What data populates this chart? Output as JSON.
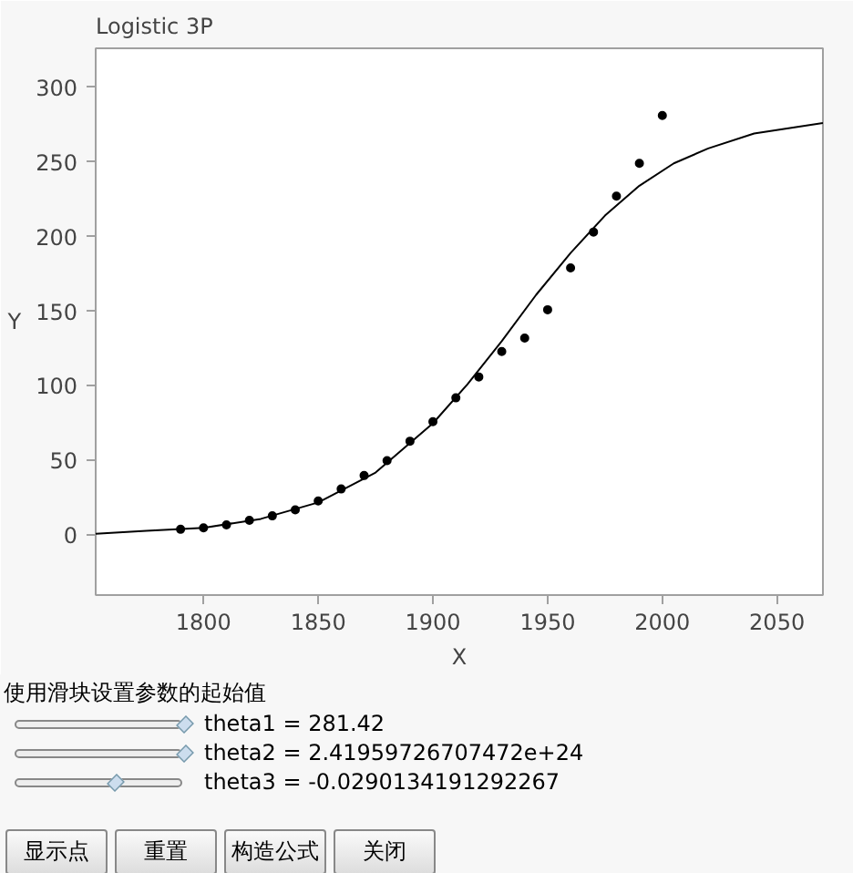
{
  "chart_data": {
    "type": "scatter",
    "title": "Logistic 3P",
    "xlabel": "X",
    "ylabel": "Y",
    "xlim": [
      1753,
      2070
    ],
    "ylim": [
      -40,
      326
    ],
    "xticks": [
      1800,
      1850,
      1900,
      1950,
      2000,
      2050
    ],
    "yticks": [
      0,
      50,
      100,
      150,
      200,
      250,
      300
    ],
    "grid": false,
    "series": [
      {
        "marker": "circle",
        "color": "#000000",
        "x": [
          1790,
          1800,
          1810,
          1820,
          1830,
          1840,
          1850,
          1860,
          1870,
          1880,
          1890,
          1900,
          1910,
          1920,
          1930,
          1940,
          1950,
          1960,
          1970,
          1980,
          1990,
          2000
        ],
        "values": [
          4,
          5,
          7,
          10,
          13,
          17,
          23,
          31,
          40,
          50,
          63,
          76,
          92,
          106,
          123,
          132,
          151,
          179,
          203,
          227,
          249,
          281
        ]
      },
      {
        "type": "line",
        "line_style": "solid",
        "color": "#000000",
        "x": [
          1753,
          1775,
          1800,
          1825,
          1850,
          1875,
          1900,
          1915,
          1930,
          1945,
          1960,
          1975,
          1990,
          2005,
          2020,
          2040,
          2070
        ],
        "values": [
          1,
          3,
          5,
          11,
          22,
          42,
          75,
          101,
          130,
          161,
          189,
          214,
          234,
          249,
          259,
          269,
          276
        ]
      }
    ],
    "annotations": [
      "使用滑块设置参数的起始值",
      "theta1 = 281.42",
      "theta2 = 2.41959726707472e+24",
      "theta3 = -0.0290134191292267",
      "显示点",
      "重置",
      "构造公式",
      "关闭"
    ]
  }
}
